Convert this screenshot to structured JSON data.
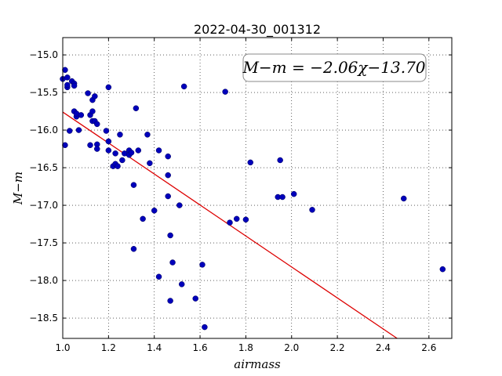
{
  "chart_data": {
    "type": "scatter",
    "title": "2022-04-30_001312",
    "xlabel": "airmass",
    "ylabel": "M−m",
    "xlim": [
      1.0,
      2.7
    ],
    "ylim": [
      -18.77,
      -14.77
    ],
    "y_inverted": true,
    "xticks": [
      1.0,
      1.2,
      1.4,
      1.6,
      1.8,
      2.0,
      2.2,
      2.4,
      2.6
    ],
    "xtick_labels": [
      "1.0",
      "1.2",
      "1.4",
      "1.6",
      "1.8",
      "2.0",
      "2.2",
      "2.4",
      "2.6"
    ],
    "yticks": [
      -15.0,
      -15.5,
      -16.0,
      -16.5,
      -17.0,
      -17.5,
      -18.0,
      -18.5
    ],
    "ytick_labels": [
      "−15.0",
      "−15.5",
      "−16.0",
      "−16.5",
      "−17.0",
      "−17.5",
      "−18.0",
      "−18.5"
    ],
    "grid": true,
    "annotation": "M−m = −2.06χ−13.70",
    "fit": {
      "slope": -2.06,
      "intercept": -13.7,
      "color": "#dd0000"
    },
    "point_color": "#0000bb",
    "points": [
      [
        1.0,
        -15.32
      ],
      [
        1.01,
        -15.2
      ],
      [
        1.02,
        -15.3
      ],
      [
        1.02,
        -15.43
      ],
      [
        1.02,
        -15.4
      ],
      [
        1.04,
        -15.35
      ],
      [
        1.05,
        -15.38
      ],
      [
        1.05,
        -15.41
      ],
      [
        1.05,
        -15.75
      ],
      [
        1.06,
        -15.82
      ],
      [
        1.06,
        -15.78
      ],
      [
        1.08,
        -15.8
      ],
      [
        1.01,
        -16.2
      ],
      [
        1.03,
        -16.01
      ],
      [
        1.07,
        -16.0
      ],
      [
        1.11,
        -15.51
      ],
      [
        1.12,
        -15.8
      ],
      [
        1.13,
        -15.88
      ],
      [
        1.13,
        -15.75
      ],
      [
        1.13,
        -15.6
      ],
      [
        1.14,
        -15.55
      ],
      [
        1.14,
        -15.88
      ],
      [
        1.15,
        -15.92
      ],
      [
        1.12,
        -16.2
      ],
      [
        1.15,
        -16.19
      ],
      [
        1.15,
        -16.25
      ],
      [
        1.19,
        -16.01
      ],
      [
        1.2,
        -15.43
      ],
      [
        1.2,
        -16.15
      ],
      [
        1.2,
        -16.27
      ],
      [
        1.22,
        -16.48
      ],
      [
        1.23,
        -16.45
      ],
      [
        1.23,
        -16.31
      ],
      [
        1.24,
        -16.48
      ],
      [
        1.25,
        -16.06
      ],
      [
        1.26,
        -16.4
      ],
      [
        1.27,
        -16.31
      ],
      [
        1.29,
        -16.27
      ],
      [
        1.29,
        -16.33
      ],
      [
        1.3,
        -16.3
      ],
      [
        1.31,
        -16.73
      ],
      [
        1.32,
        -15.71
      ],
      [
        1.33,
        -16.27
      ],
      [
        1.35,
        -17.18
      ],
      [
        1.37,
        -16.06
      ],
      [
        1.38,
        -16.44
      ],
      [
        1.4,
        -17.07
      ],
      [
        1.42,
        -16.27
      ],
      [
        1.42,
        -17.95
      ],
      [
        1.46,
        -16.35
      ],
      [
        1.46,
        -16.6
      ],
      [
        1.46,
        -16.88
      ],
      [
        1.47,
        -17.4
      ],
      [
        1.47,
        -18.27
      ],
      [
        1.48,
        -17.76
      ],
      [
        1.51,
        -17.0
      ],
      [
        1.52,
        -18.05
      ],
      [
        1.53,
        -15.42
      ],
      [
        1.58,
        -18.24
      ],
      [
        1.61,
        -17.79
      ],
      [
        1.62,
        -18.62
      ],
      [
        1.31,
        -17.58
      ],
      [
        1.71,
        -15.49
      ],
      [
        1.73,
        -17.23
      ],
      [
        1.76,
        -17.18
      ],
      [
        1.8,
        -17.19
      ],
      [
        1.82,
        -16.43
      ],
      [
        1.94,
        -16.89
      ],
      [
        1.95,
        -16.4
      ],
      [
        1.96,
        -16.89
      ],
      [
        2.01,
        -16.85
      ],
      [
        2.09,
        -17.06
      ],
      [
        2.49,
        -16.91
      ],
      [
        2.66,
        -17.85
      ]
    ]
  }
}
